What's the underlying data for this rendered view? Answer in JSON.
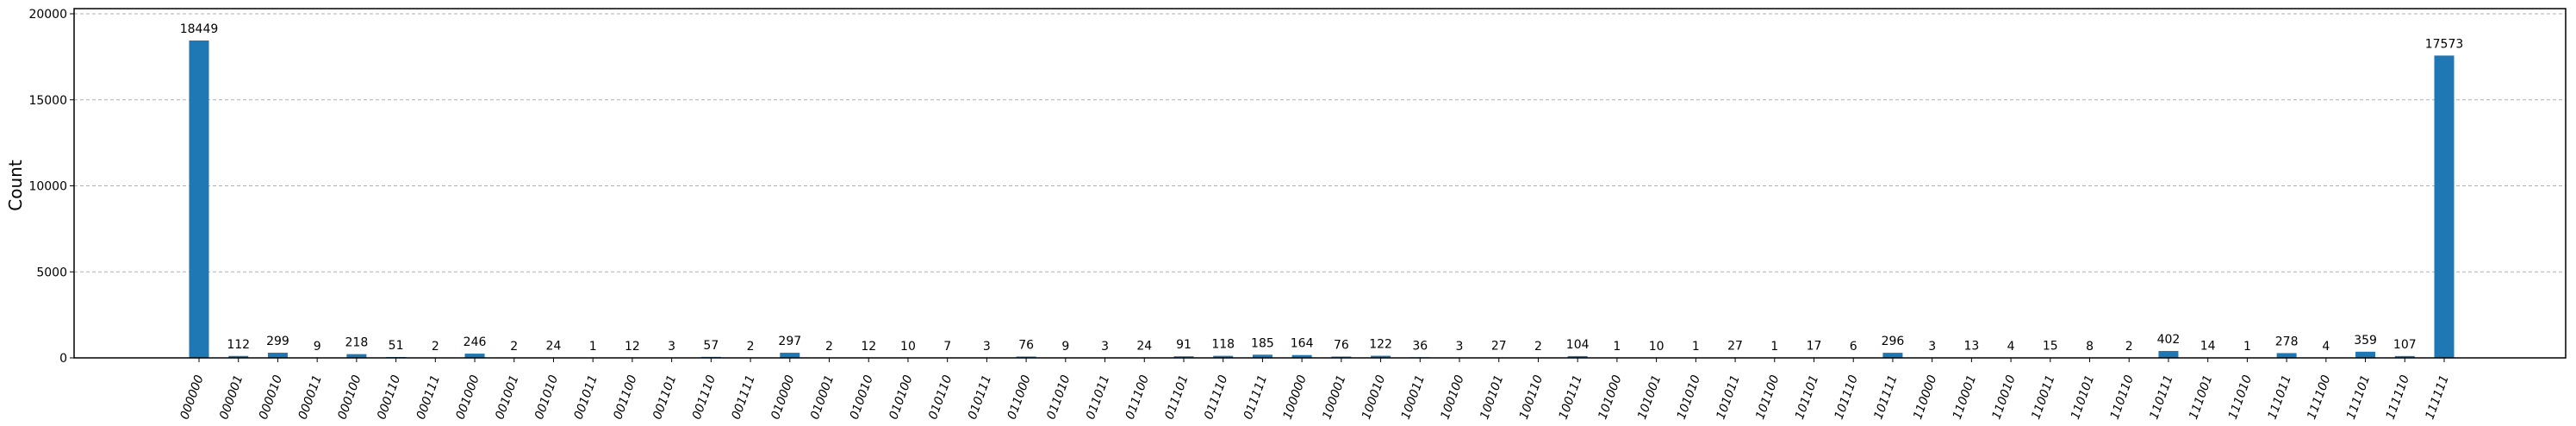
{
  "chart_data": {
    "type": "bar",
    "title": "",
    "xlabel": "",
    "ylabel": "Count",
    "ylim": [
      0,
      20300
    ],
    "yticks": [
      0,
      5000,
      10000,
      15000,
      20000
    ],
    "grid": "horizontal dashed",
    "bar_color": "#1f77b4",
    "categories": [
      "000000",
      "000001",
      "000010",
      "000011",
      "000100",
      "000110",
      "000111",
      "001000",
      "001001",
      "001010",
      "001011",
      "001100",
      "001101",
      "001110",
      "001111",
      "010000",
      "010001",
      "010010",
      "010100",
      "010110",
      "010111",
      "011000",
      "011010",
      "011011",
      "011100",
      "011101",
      "011110",
      "011111",
      "100000",
      "100001",
      "100010",
      "100011",
      "100100",
      "100101",
      "100110",
      "100111",
      "101000",
      "101001",
      "101010",
      "101011",
      "101100",
      "101101",
      "101110",
      "101111",
      "110000",
      "110001",
      "110010",
      "110011",
      "110101",
      "110110",
      "110111",
      "111001",
      "111010",
      "111011",
      "111100",
      "111101",
      "111110",
      "111111"
    ],
    "values": [
      18449,
      112,
      299,
      9,
      218,
      51,
      2,
      246,
      2,
      24,
      1,
      12,
      3,
      57,
      2,
      297,
      2,
      12,
      10,
      7,
      3,
      76,
      9,
      3,
      24,
      91,
      118,
      185,
      164,
      76,
      122,
      36,
      3,
      27,
      2,
      104,
      1,
      10,
      1,
      27,
      1,
      17,
      6,
      296,
      3,
      13,
      4,
      15,
      8,
      2,
      402,
      14,
      1,
      278,
      4,
      359,
      107,
      17573
    ]
  }
}
